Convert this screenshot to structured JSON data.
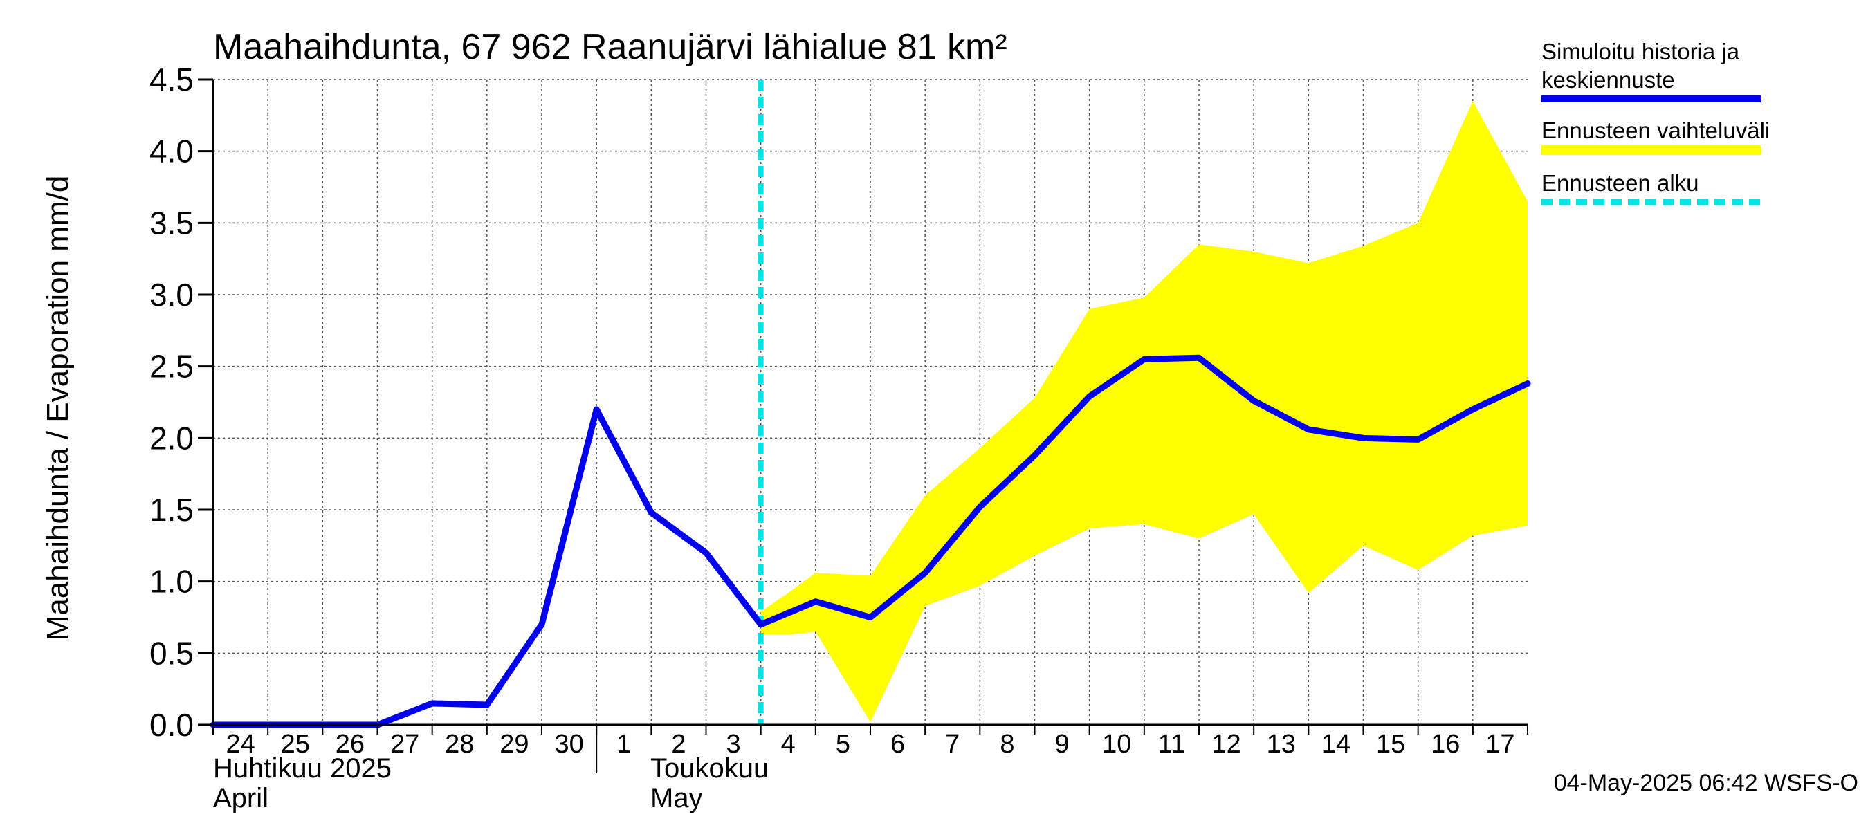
{
  "chart_data": {
    "type": "line",
    "title": "Maahaihdunta, 67 962 Raanujärvi lähialue 81 km²",
    "ylabel": "Maahaihdunta / Evaporation   mm/d",
    "ylim": [
      0,
      4.5
    ],
    "yticks": [
      "0.0",
      "0.5",
      "1.0",
      "1.5",
      "2.0",
      "2.5",
      "3.0",
      "3.5",
      "4.0",
      "4.5"
    ],
    "x_days": [
      "24",
      "25",
      "26",
      "27",
      "28",
      "29",
      "30",
      "1",
      "2",
      "3",
      "4",
      "5",
      "6",
      "7",
      "8",
      "9",
      "10",
      "11",
      "12",
      "13",
      "14",
      "15",
      "16",
      "17"
    ],
    "month_labels": [
      {
        "fi": "Huhtikuu  2025",
        "en": "April"
      },
      {
        "fi": "Toukokuu",
        "en": "May"
      }
    ],
    "series": [
      {
        "name": "Simuloitu historia ja keskiennuste",
        "color": "#0000ee",
        "points": [
          [
            0,
            0
          ],
          [
            1,
            0
          ],
          [
            2,
            0
          ],
          [
            3,
            0
          ],
          [
            4,
            0.15
          ],
          [
            5,
            0.14
          ],
          [
            6,
            0.7
          ],
          [
            7,
            2.2
          ],
          [
            8,
            1.48
          ],
          [
            9,
            1.2
          ],
          [
            10,
            0.7
          ],
          [
            11,
            0.86
          ],
          [
            12,
            0.75
          ],
          [
            13,
            1.06
          ],
          [
            14,
            1.52
          ],
          [
            15,
            1.88
          ],
          [
            16,
            2.29
          ],
          [
            17,
            2.55
          ],
          [
            18,
            2.56
          ],
          [
            19,
            2.26
          ],
          [
            20,
            2.06
          ],
          [
            21,
            2.0
          ],
          [
            22,
            1.99
          ],
          [
            23,
            2.2
          ],
          [
            24,
            2.38
          ]
        ]
      }
    ],
    "band": {
      "name": "Ennusteen vaihteluväli",
      "color": "#ffff00",
      "x": [
        10,
        10.5,
        11,
        12,
        13,
        14,
        15,
        16,
        17,
        18,
        19,
        20,
        21,
        22,
        23,
        24
      ],
      "upper": [
        0.79,
        0.92,
        1.06,
        1.04,
        1.6,
        1.93,
        2.28,
        2.9,
        2.98,
        3.35,
        3.3,
        3.22,
        3.34,
        3.5,
        4.35,
        3.65
      ],
      "lower": [
        0.63,
        0.63,
        0.65,
        0.02,
        0.83,
        0.97,
        1.18,
        1.37,
        1.4,
        1.3,
        1.47,
        0.92,
        1.25,
        1.08,
        1.32,
        1.39
      ]
    },
    "forecast_start_x": 10,
    "forecast_line_color": "#00e5e5",
    "legend_position": "right",
    "legend_labels": {
      "history_line1": "Simuloitu historia ja",
      "history_line2": "keskiennuste",
      "band": "Ennusteen vaihteluväli",
      "start": "Ennusteen alku"
    },
    "grid": true
  },
  "footer": {
    "timestamp": "04-May-2025 06:42 WSFS-O"
  }
}
